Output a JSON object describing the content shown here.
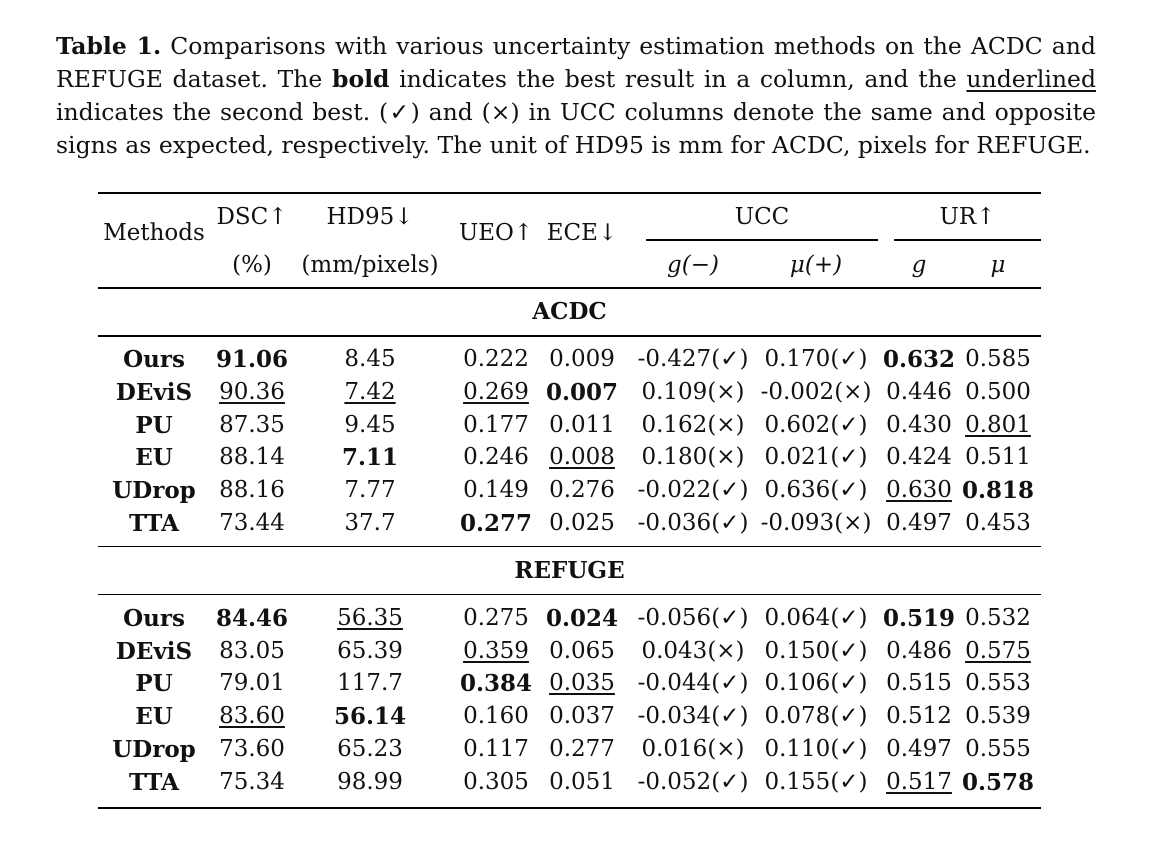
{
  "caption": {
    "label": "Table 1.",
    "part1": " Comparisons with various uncertainty estimation methods on the ACDC and REFUGE dataset. The ",
    "bold_word": "bold",
    "part2": " indicates the best result in a column, and the ",
    "underlined_word": "underlined",
    "part3": " indicates the second best. (✓) and (×) in UCC columns denote the same and opposite signs as expected, respectively. The unit of HD95 is mm for ACDC, pixels for REFUGE."
  },
  "header": {
    "methods": "Methods",
    "dsc": "DSC↑",
    "dsc_unit": "(%)",
    "hd95": "HD95↓",
    "hd95_unit": "(mm/pixels)",
    "ueo": "UEO↑",
    "ece": "ECE↓",
    "ucc": "UCC",
    "ucc_g": "g(−)",
    "ucc_mu": "μ(+)",
    "ur": "UR↑",
    "ur_g": "g",
    "ur_mu": "μ"
  },
  "sections": [
    {
      "title": "ACDC",
      "rows": [
        [
          {
            "t": "Ours",
            "s": "b"
          },
          {
            "t": "91.06",
            "s": "b"
          },
          {
            "t": "8.45"
          },
          {
            "t": "0.222"
          },
          {
            "t": "0.009"
          },
          {
            "t": "-0.427(✓)"
          },
          {
            "t": "0.170(✓)"
          },
          {
            "t": "0.632",
            "s": "b"
          },
          {
            "t": "0.585"
          }
        ],
        [
          {
            "t": "DEviS",
            "s": "b"
          },
          {
            "t": "90.36",
            "s": "u"
          },
          {
            "t": "7.42",
            "s": "u"
          },
          {
            "t": "0.269",
            "s": "u"
          },
          {
            "t": "0.007",
            "s": "b"
          },
          {
            "t": "0.109(×)"
          },
          {
            "t": "-0.002(×)"
          },
          {
            "t": "0.446"
          },
          {
            "t": "0.500"
          }
        ],
        [
          {
            "t": "PU",
            "s": "b"
          },
          {
            "t": "87.35"
          },
          {
            "t": "9.45"
          },
          {
            "t": "0.177"
          },
          {
            "t": "0.011"
          },
          {
            "t": "0.162(×)"
          },
          {
            "t": "0.602(✓)"
          },
          {
            "t": "0.430"
          },
          {
            "t": "0.801",
            "s": "u"
          }
        ],
        [
          {
            "t": "EU",
            "s": "b"
          },
          {
            "t": "88.14"
          },
          {
            "t": "7.11",
            "s": "b"
          },
          {
            "t": "0.246"
          },
          {
            "t": "0.008",
            "s": "u"
          },
          {
            "t": "0.180(×)"
          },
          {
            "t": "0.021(✓)"
          },
          {
            "t": "0.424"
          },
          {
            "t": "0.511"
          }
        ],
        [
          {
            "t": "UDrop",
            "s": "b"
          },
          {
            "t": "88.16"
          },
          {
            "t": "7.77"
          },
          {
            "t": "0.149"
          },
          {
            "t": "0.276"
          },
          {
            "t": "-0.022(✓)"
          },
          {
            "t": "0.636(✓)"
          },
          {
            "t": "0.630",
            "s": "u"
          },
          {
            "t": "0.818",
            "s": "b"
          }
        ],
        [
          {
            "t": "TTA",
            "s": "b"
          },
          {
            "t": "73.44"
          },
          {
            "t": "37.7"
          },
          {
            "t": "0.277",
            "s": "b"
          },
          {
            "t": "0.025"
          },
          {
            "t": "-0.036(✓)"
          },
          {
            "t": "-0.093(×)"
          },
          {
            "t": "0.497"
          },
          {
            "t": "0.453"
          }
        ]
      ]
    },
    {
      "title": "REFUGE",
      "rows": [
        [
          {
            "t": "Ours",
            "s": "b"
          },
          {
            "t": "84.46",
            "s": "b"
          },
          {
            "t": "56.35",
            "s": "u"
          },
          {
            "t": "0.275"
          },
          {
            "t": "0.024",
            "s": "b"
          },
          {
            "t": "-0.056(✓)"
          },
          {
            "t": "0.064(✓)"
          },
          {
            "t": "0.519",
            "s": "b"
          },
          {
            "t": "0.532"
          }
        ],
        [
          {
            "t": "DEviS",
            "s": "b"
          },
          {
            "t": "83.05"
          },
          {
            "t": "65.39"
          },
          {
            "t": "0.359",
            "s": "u"
          },
          {
            "t": "0.065"
          },
          {
            "t": "0.043(×)"
          },
          {
            "t": "0.150(✓)"
          },
          {
            "t": "0.486"
          },
          {
            "t": "0.575",
            "s": "u"
          }
        ],
        [
          {
            "t": "PU",
            "s": "b"
          },
          {
            "t": "79.01"
          },
          {
            "t": "117.7"
          },
          {
            "t": "0.384",
            "s": "b"
          },
          {
            "t": "0.035",
            "s": "u"
          },
          {
            "t": "-0.044(✓)"
          },
          {
            "t": "0.106(✓)"
          },
          {
            "t": "0.515"
          },
          {
            "t": "0.553"
          }
        ],
        [
          {
            "t": "EU",
            "s": "b"
          },
          {
            "t": "83.60",
            "s": "u"
          },
          {
            "t": "56.14",
            "s": "b"
          },
          {
            "t": "0.160"
          },
          {
            "t": "0.037"
          },
          {
            "t": "-0.034(✓)"
          },
          {
            "t": "0.078(✓)"
          },
          {
            "t": "0.512"
          },
          {
            "t": "0.539"
          }
        ],
        [
          {
            "t": "UDrop",
            "s": "b"
          },
          {
            "t": "73.60"
          },
          {
            "t": "65.23"
          },
          {
            "t": "0.117"
          },
          {
            "t": "0.277"
          },
          {
            "t": "0.016(×)"
          },
          {
            "t": "0.110(✓)"
          },
          {
            "t": "0.497"
          },
          {
            "t": "0.555"
          }
        ],
        [
          {
            "t": "TTA",
            "s": "b"
          },
          {
            "t": "75.34"
          },
          {
            "t": "98.99"
          },
          {
            "t": "0.305"
          },
          {
            "t": "0.051"
          },
          {
            "t": "-0.052(✓)"
          },
          {
            "t": "0.155(✓)"
          },
          {
            "t": "0.517",
            "s": "u"
          },
          {
            "t": "0.578",
            "s": "b"
          }
        ]
      ]
    }
  ]
}
